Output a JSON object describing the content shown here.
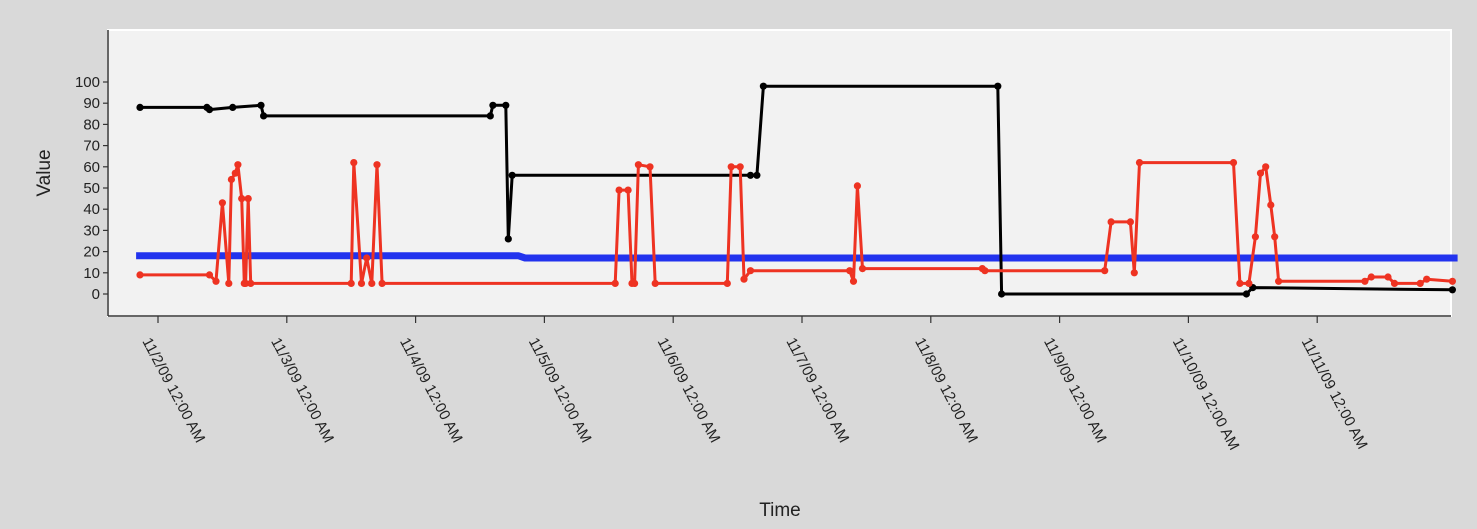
{
  "chart_data": {
    "type": "line",
    "xlabel": "Time",
    "ylabel": "Value",
    "ylim": [
      -8,
      105
    ],
    "yticks": [
      0,
      10,
      20,
      30,
      40,
      50,
      60,
      70,
      80,
      90,
      100
    ],
    "x_ticks": [
      {
        "t": 0,
        "label": "11/2/09 12:00 AM"
      },
      {
        "t": 1,
        "label": "11/3/09 12:00 AM"
      },
      {
        "t": 2,
        "label": "11/4/09 12:00 AM"
      },
      {
        "t": 3,
        "label": "11/5/09 12:00 AM"
      },
      {
        "t": 4,
        "label": "11/6/09 12:00 AM"
      },
      {
        "t": 5,
        "label": "11/7/09 12:00 AM"
      },
      {
        "t": 6,
        "label": "11/8/09 12:00 AM"
      },
      {
        "t": 7,
        "label": "11/9/09 12:00 AM"
      },
      {
        "t": 8,
        "label": "11/10/09 12:00 AM"
      },
      {
        "t": 9,
        "label": "11/11/09 12:00 AM"
      }
    ],
    "series": [
      {
        "color": "#2233ee",
        "markers": false,
        "points": [
          [
            -0.17,
            18
          ],
          [
            2.8,
            18
          ],
          [
            2.85,
            17
          ],
          [
            10.09,
            17
          ]
        ]
      },
      {
        "color": "#000000",
        "markers": true,
        "points": [
          [
            -0.14,
            88
          ],
          [
            0.38,
            88
          ],
          [
            0.4,
            87
          ],
          [
            0.58,
            88
          ],
          [
            0.8,
            89
          ],
          [
            0.82,
            84
          ],
          [
            2.58,
            84
          ],
          [
            2.6,
            89
          ],
          [
            2.7,
            89
          ],
          [
            2.72,
            26
          ],
          [
            2.75,
            56
          ],
          [
            4.6,
            56
          ],
          [
            4.65,
            56
          ],
          [
            4.7,
            98
          ],
          [
            6.52,
            98
          ],
          [
            6.55,
            0
          ],
          [
            8.45,
            0
          ],
          [
            8.5,
            3
          ],
          [
            10.05,
            2
          ]
        ]
      },
      {
        "color": "#ee3322",
        "markers": true,
        "points": [
          [
            -0.14,
            9
          ],
          [
            0.4,
            9
          ],
          [
            0.45,
            6
          ],
          [
            0.5,
            43
          ],
          [
            0.55,
            5
          ],
          [
            0.57,
            54
          ],
          [
            0.6,
            57
          ],
          [
            0.62,
            61
          ],
          [
            0.65,
            45
          ],
          [
            0.67,
            5
          ],
          [
            0.68,
            5
          ],
          [
            0.7,
            45
          ],
          [
            0.72,
            5
          ],
          [
            1.5,
            5
          ],
          [
            1.52,
            62
          ],
          [
            1.58,
            5
          ],
          [
            1.62,
            17
          ],
          [
            1.66,
            5
          ],
          [
            1.7,
            61
          ],
          [
            1.74,
            5
          ],
          [
            3.55,
            5
          ],
          [
            3.58,
            49
          ],
          [
            3.65,
            49
          ],
          [
            3.68,
            5
          ],
          [
            3.7,
            5
          ],
          [
            3.73,
            61
          ],
          [
            3.82,
            60
          ],
          [
            3.86,
            5
          ],
          [
            4.42,
            5
          ],
          [
            4.45,
            60
          ],
          [
            4.52,
            60
          ],
          [
            4.55,
            7
          ],
          [
            4.6,
            11
          ],
          [
            5.37,
            11
          ],
          [
            5.4,
            6
          ],
          [
            5.43,
            51
          ],
          [
            5.47,
            12
          ],
          [
            6.4,
            12
          ],
          [
            6.42,
            11
          ],
          [
            7.35,
            11
          ],
          [
            7.4,
            34
          ],
          [
            7.55,
            34
          ],
          [
            7.58,
            10
          ],
          [
            7.62,
            62
          ],
          [
            8.35,
            62
          ],
          [
            8.4,
            5
          ],
          [
            8.47,
            5
          ],
          [
            8.52,
            27
          ],
          [
            8.56,
            57
          ],
          [
            8.6,
            60
          ],
          [
            8.64,
            42
          ],
          [
            8.67,
            27
          ],
          [
            8.7,
            6
          ],
          [
            9.37,
            6
          ],
          [
            9.42,
            8
          ],
          [
            9.55,
            8
          ],
          [
            9.6,
            5
          ],
          [
            9.8,
            5
          ],
          [
            9.85,
            7
          ],
          [
            10.05,
            6
          ]
        ]
      }
    ]
  }
}
